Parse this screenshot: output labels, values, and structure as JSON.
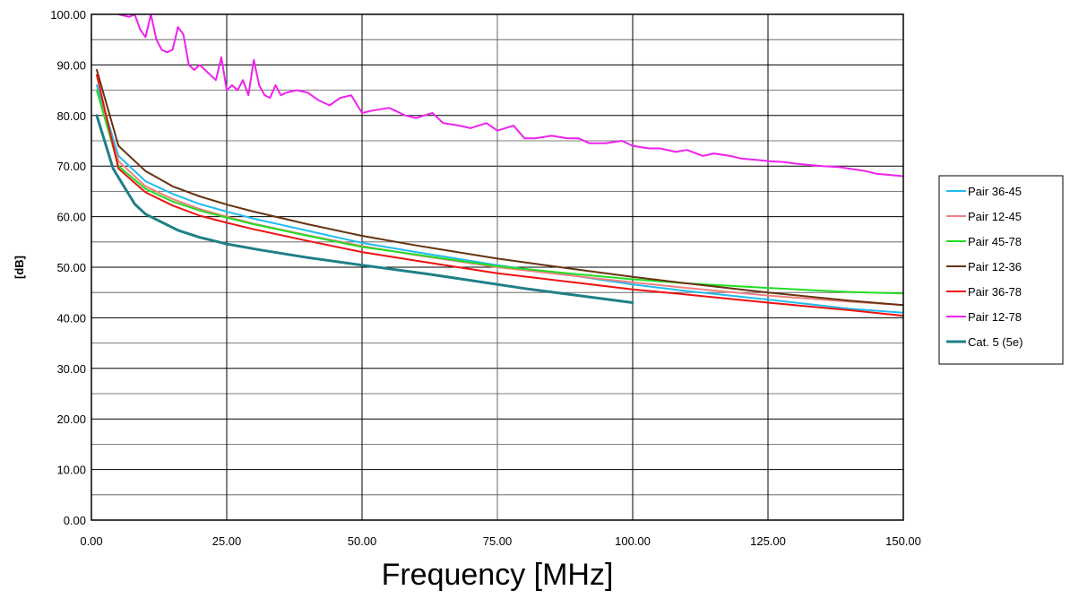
{
  "chart_data": {
    "type": "line",
    "title": "",
    "xlabel": "Frequency [MHz]",
    "ylabel": "[dB]",
    "xlim": [
      0,
      150
    ],
    "ylim": [
      0,
      100
    ],
    "x_ticks": [
      "0.00",
      "25.00",
      "50.00",
      "75.00",
      "100.00",
      "125.00",
      "150.00"
    ],
    "y_ticks": [
      "0.00",
      "10.00",
      "20.00",
      "30.00",
      "40.00",
      "50.00",
      "60.00",
      "70.00",
      "80.00",
      "90.00",
      "100.00"
    ],
    "grid": true,
    "legend_position": "right",
    "series": [
      {
        "name": "Pair 36-45",
        "color": "#22bbee",
        "x": [
          1,
          5,
          10,
          15,
          20,
          25,
          30,
          40,
          50,
          60,
          75,
          90,
          100,
          110,
          125,
          140,
          150
        ],
        "y": [
          86,
          72,
          67,
          64.5,
          62.5,
          61,
          59.6,
          57.2,
          54.8,
          53,
          50.4,
          48.2,
          46.6,
          45.3,
          43.6,
          41.8,
          41
        ]
      },
      {
        "name": "Pair 12-45",
        "color": "#f08080",
        "x": [
          1,
          5,
          10,
          15,
          20,
          25,
          30,
          40,
          50,
          60,
          75,
          90,
          100,
          110,
          125,
          140,
          150
        ],
        "y": [
          85,
          71,
          66,
          63.5,
          61.5,
          60,
          58.6,
          56.3,
          54.2,
          52.4,
          50,
          48.2,
          47,
          45.9,
          44.4,
          43.2,
          42.5
        ]
      },
      {
        "name": "Pair 45-78",
        "color": "#22dd22",
        "x": [
          1,
          5,
          10,
          15,
          20,
          25,
          30,
          40,
          50,
          60,
          75,
          90,
          100,
          110,
          125,
          140,
          150
        ],
        "y": [
          85,
          70,
          65.5,
          63,
          61.2,
          59.8,
          58.5,
          56.2,
          54,
          52.5,
          50.2,
          48.6,
          47.6,
          46.8,
          45.9,
          45.1,
          44.8
        ]
      },
      {
        "name": "Pair 12-36",
        "color": "#663311",
        "x": [
          1,
          5,
          10,
          15,
          20,
          25,
          30,
          40,
          50,
          60,
          75,
          90,
          100,
          110,
          125,
          140,
          150
        ],
        "y": [
          89,
          74,
          69,
          66,
          64,
          62.4,
          61,
          58.5,
          56.2,
          54.3,
          51.7,
          49.5,
          48.1,
          46.8,
          45,
          43.4,
          42.5
        ]
      },
      {
        "name": "Pair 36-78",
        "color": "#ee1111",
        "x": [
          1,
          5,
          10,
          15,
          20,
          25,
          30,
          40,
          50,
          60,
          75,
          90,
          100,
          110,
          125,
          140,
          150
        ],
        "y": [
          88,
          69.5,
          64.8,
          62.2,
          60.2,
          58.8,
          57.5,
          55.2,
          53,
          51.3,
          48.8,
          46.9,
          45.6,
          44.6,
          43,
          41.5,
          40.4
        ]
      },
      {
        "name": "Pair 12-78",
        "color": "#ee22ee",
        "x": [
          5,
          7,
          8,
          9,
          10,
          11,
          12,
          13,
          14,
          15,
          16,
          17,
          18,
          19,
          20,
          21,
          22,
          23,
          24,
          25,
          26,
          27,
          28,
          29,
          30,
          31,
          32,
          33,
          34,
          35,
          36,
          38,
          40,
          42,
          44,
          46,
          48,
          50,
          52,
          55,
          58,
          60,
          63,
          65,
          68,
          70,
          73,
          75,
          78,
          80,
          82,
          85,
          88,
          90,
          92,
          95,
          98,
          100,
          103,
          105,
          108,
          110,
          113,
          115,
          118,
          120,
          123,
          125,
          128,
          130,
          133,
          135,
          138,
          140,
          143,
          145,
          148,
          150
        ],
        "y": [
          100,
          99.5,
          100,
          97,
          95.5,
          100,
          95,
          93,
          92.5,
          93,
          97.5,
          96,
          90,
          89,
          90,
          89,
          88,
          87,
          91.5,
          85,
          86,
          85,
          87,
          84,
          91,
          86,
          84,
          83.5,
          86,
          84,
          84.5,
          85,
          84.5,
          83,
          82,
          83.5,
          84,
          80.5,
          81,
          81.5,
          80,
          79.5,
          80.5,
          78.5,
          78,
          77.5,
          78.5,
          77,
          78,
          75.5,
          75.5,
          76,
          75.5,
          75.5,
          74.5,
          74.5,
          75,
          74,
          73.5,
          73.5,
          72.8,
          73.2,
          72,
          72.5,
          72,
          71.5,
          71.2,
          71,
          70.8,
          70.5,
          70.2,
          70,
          69.8,
          69.5,
          69,
          68.5,
          68.2,
          68
        ]
      },
      {
        "name": "Cat. 5 (5e)",
        "color": "#1f7f87",
        "x": [
          1,
          4,
          8,
          10,
          16,
          20,
          25,
          31.25,
          40,
          50,
          62.5,
          80,
          100
        ],
        "y": [
          80,
          69.5,
          62.5,
          60.5,
          57.3,
          55.9,
          54.6,
          53.4,
          51.9,
          50.4,
          48.6,
          45.8,
          43
        ]
      }
    ]
  }
}
